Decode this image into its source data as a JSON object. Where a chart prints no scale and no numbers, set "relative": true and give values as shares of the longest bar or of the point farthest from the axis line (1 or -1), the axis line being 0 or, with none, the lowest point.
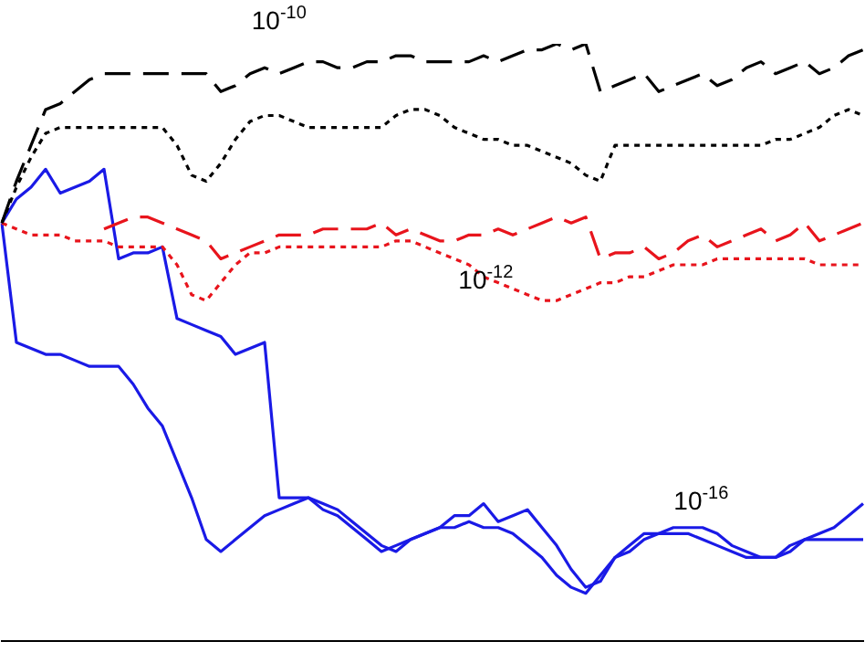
{
  "chart_data": {
    "type": "line",
    "relative": true,
    "categories": [
      null,
      null,
      null,
      null,
      null,
      null,
      null,
      null,
      null,
      null,
      null,
      null,
      null,
      null,
      null,
      null,
      null,
      null,
      null,
      null,
      null,
      null,
      null,
      null,
      null,
      null,
      null,
      null,
      null,
      null,
      null,
      null,
      null,
      null,
      null,
      null,
      null,
      null,
      null,
      null,
      null,
      null,
      null,
      null,
      null,
      null,
      null,
      null,
      null,
      null,
      null,
      null,
      null,
      null,
      null,
      null,
      null,
      null,
      null,
      null
    ],
    "marker": "none",
    "grid": false,
    "legend": false,
    "annotations": [
      "10$^{-10}$",
      "10$^{-12}$",
      "10$^{-16}$"
    ],
    "series": [
      {
        "color": "#000000",
        "line_style": "dashed",
        "values": [
          0.7,
          0.77,
          0.83,
          0.89,
          0.9,
          0.92,
          0.94,
          0.95,
          0.95,
          0.95,
          0.95,
          0.95,
          0.95,
          0.95,
          0.95,
          0.92,
          0.93,
          0.95,
          0.96,
          0.95,
          0.96,
          0.97,
          0.97,
          0.96,
          0.96,
          0.97,
          0.97,
          0.98,
          0.98,
          0.97,
          0.97,
          0.97,
          0.97,
          0.98,
          0.97,
          0.98,
          0.99,
          0.99,
          1.0,
          0.99,
          1.0,
          0.92,
          0.93,
          0.94,
          0.95,
          0.92,
          0.93,
          0.94,
          0.95,
          0.93,
          0.94,
          0.96,
          0.97,
          0.95,
          0.96,
          0.97,
          0.95,
          0.96,
          0.98,
          0.99
        ]
      },
      {
        "color": "#000000",
        "line_style": "dotted",
        "values": [
          0.7,
          0.76,
          0.81,
          0.85,
          0.86,
          0.86,
          0.86,
          0.86,
          0.86,
          0.86,
          0.86,
          0.86,
          0.83,
          0.78,
          0.77,
          0.8,
          0.84,
          0.87,
          0.88,
          0.88,
          0.87,
          0.86,
          0.86,
          0.86,
          0.86,
          0.86,
          0.86,
          0.88,
          0.89,
          0.89,
          0.88,
          0.86,
          0.85,
          0.84,
          0.84,
          0.83,
          0.83,
          0.82,
          0.81,
          0.8,
          0.78,
          0.77,
          0.83,
          0.83,
          0.83,
          0.83,
          0.83,
          0.83,
          0.83,
          0.83,
          0.83,
          0.83,
          0.83,
          0.84,
          0.84,
          0.85,
          0.86,
          0.88,
          0.89,
          0.88
        ]
      },
      {
        "color": "#e8141c",
        "line_style": "dashed",
        "values": [
          null,
          null,
          null,
          null,
          null,
          null,
          null,
          0.69,
          0.7,
          0.71,
          0.71,
          0.7,
          0.69,
          0.68,
          0.67,
          0.64,
          0.65,
          0.66,
          0.67,
          0.68,
          0.68,
          0.68,
          0.69,
          0.69,
          0.69,
          0.69,
          0.7,
          0.68,
          0.69,
          0.68,
          0.67,
          0.67,
          0.68,
          0.68,
          0.69,
          0.68,
          0.69,
          0.7,
          0.71,
          0.7,
          0.71,
          0.64,
          0.65,
          0.65,
          0.66,
          0.64,
          0.65,
          0.67,
          0.68,
          0.66,
          0.67,
          0.68,
          0.69,
          0.67,
          0.68,
          0.7,
          0.67,
          0.68,
          0.69,
          0.7
        ]
      },
      {
        "color": "#e8141c",
        "line_style": "dotted",
        "values": [
          0.7,
          0.69,
          0.68,
          0.68,
          0.68,
          0.67,
          0.67,
          0.67,
          0.66,
          0.66,
          0.66,
          0.66,
          0.63,
          0.58,
          0.57,
          0.6,
          0.63,
          0.65,
          0.65,
          0.66,
          0.66,
          0.66,
          0.66,
          0.66,
          0.66,
          0.66,
          0.66,
          0.67,
          0.67,
          0.66,
          0.65,
          0.64,
          0.63,
          0.61,
          0.6,
          0.59,
          0.58,
          0.57,
          0.57,
          0.58,
          0.59,
          0.6,
          0.6,
          0.61,
          0.61,
          0.62,
          0.63,
          0.63,
          0.63,
          0.64,
          0.64,
          0.64,
          0.64,
          0.64,
          0.64,
          0.64,
          0.63,
          0.63,
          0.63,
          0.63
        ]
      },
      {
        "color": "#1a1ae6",
        "line_style": "solid",
        "values": [
          0.7,
          0.74,
          0.76,
          0.79,
          0.75,
          0.76,
          0.77,
          0.79,
          0.64,
          0.65,
          0.65,
          0.66,
          0.54,
          0.53,
          0.52,
          0.51,
          0.48,
          0.49,
          0.5,
          0.24,
          0.24,
          0.24,
          0.22,
          0.21,
          0.19,
          0.17,
          0.15,
          0.16,
          0.17,
          0.18,
          0.19,
          0.21,
          0.21,
          0.23,
          0.2,
          0.21,
          0.22,
          0.19,
          0.16,
          0.12,
          0.09,
          0.1,
          0.14,
          0.15,
          0.17,
          0.18,
          0.19,
          0.19,
          0.19,
          0.18,
          0.16,
          0.15,
          0.14,
          0.14,
          0.15,
          0.17,
          0.18,
          0.19,
          0.21,
          0.23
        ]
      },
      {
        "color": "#1a1ae6",
        "line_style": "solid",
        "values": [
          0.7,
          0.5,
          0.49,
          0.48,
          0.48,
          0.47,
          0.46,
          0.46,
          0.46,
          0.43,
          0.39,
          0.36,
          0.3,
          0.24,
          0.17,
          0.15,
          0.17,
          0.19,
          0.21,
          0.22,
          0.23,
          0.24,
          0.23,
          0.22,
          0.2,
          0.18,
          0.16,
          0.15,
          0.17,
          0.18,
          0.19,
          0.19,
          0.2,
          0.19,
          0.19,
          0.18,
          0.16,
          0.14,
          0.11,
          0.09,
          0.08,
          0.11,
          0.14,
          0.16,
          0.18,
          0.18,
          0.18,
          0.18,
          0.17,
          0.16,
          0.15,
          0.14,
          0.14,
          0.14,
          0.16,
          0.17,
          0.17,
          0.17,
          0.17,
          0.17
        ]
      }
    ]
  }
}
